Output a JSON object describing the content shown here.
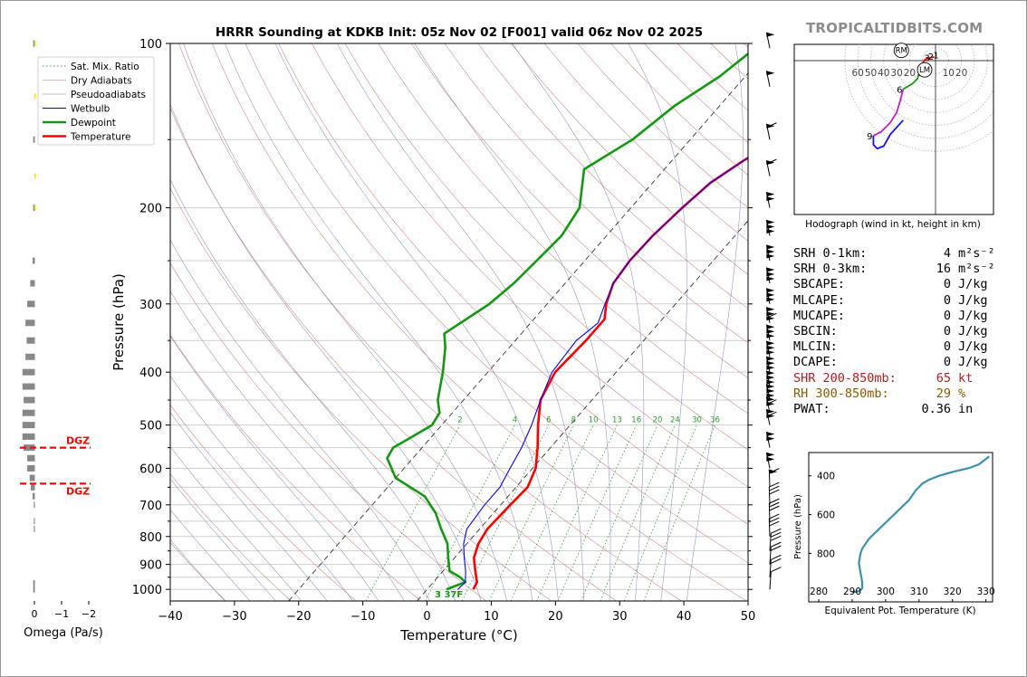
{
  "brand": "TROPICALTIDBITS.COM",
  "colors": {
    "temperature": "#ff0000",
    "dewpoint": "#119911",
    "wetbulb": "#0000ff",
    "dry_adiabat": "#d08080",
    "pseudo_adiabat": "#9090c8",
    "mixing_ratio": "#2e9e2e",
    "theta_e": "#3a92b0",
    "omega": "#888888",
    "dgz": "#ff0000",
    "srh_color": "#b02020",
    "rh_color": "#8b5a00"
  },
  "chart_data": [
    {
      "id": "skewt",
      "type": "line",
      "title": "HRRR Sounding at KDKB Init: 05z Nov 02 [F001] valid 06z Nov 02 2025",
      "xlabel": "Temperature (°C)",
      "ylabel": "Pressure (hPa)",
      "xlim": [
        -40,
        50
      ],
      "ylim": [
        1050,
        100
      ],
      "y_scale": "log",
      "x_ticks": [
        "−40",
        "−30",
        "−20",
        "−10",
        "0",
        "10",
        "20",
        "30",
        "40",
        "50"
      ],
      "y_ticks": [
        "100",
        "200",
        "300",
        "400",
        "500",
        "600",
        "700",
        "800",
        "900",
        "1000"
      ],
      "mixing_ratio_labels": [
        "2",
        "4",
        "6",
        "8",
        "10",
        "13",
        "16",
        "20",
        "24",
        "30",
        "36"
      ],
      "surface_label": "3 37F",
      "legend": [
        "Sat. Mix. Ratio",
        "Dry Adiabats",
        "Pseudoadiabats",
        "Wetbulb",
        "Dewpoint",
        "Temperature"
      ],
      "legend_position": "top-left",
      "series": [
        {
          "name": "Temperature",
          "points": [
            [
              7.2,
              1000
            ],
            [
              6.8,
              970
            ],
            [
              5,
              925
            ],
            [
              3,
              875
            ],
            [
              1.8,
              825
            ],
            [
              1.2,
              775
            ],
            [
              1.5,
              700
            ],
            [
              1.8,
              650
            ],
            [
              0.5,
              600
            ],
            [
              -2,
              550
            ],
            [
              -5,
              500
            ],
            [
              -8,
              450
            ],
            [
              -9.5,
              400
            ],
            [
              -9,
              350
            ],
            [
              -9,
              320
            ],
            [
              -10.8,
              300
            ],
            [
              -12.5,
              275
            ],
            [
              -13,
              250
            ],
            [
              -12.8,
              225
            ],
            [
              -12,
              200
            ],
            [
              -11,
              180
            ],
            [
              -9,
              165
            ],
            [
              -6.5,
              150
            ],
            [
              -3.5,
              130
            ],
            [
              -1,
              115
            ],
            [
              1,
              100
            ]
          ]
        },
        {
          "name": "Dewpoint",
          "points": [
            [
              3,
              1000
            ],
            [
              5,
              970
            ],
            [
              3.5,
              950
            ],
            [
              1,
              925
            ],
            [
              -1,
              875
            ],
            [
              -3,
              825
            ],
            [
              -6,
              775
            ],
            [
              -9,
              725
            ],
            [
              -13,
              675
            ],
            [
              -20,
              625
            ],
            [
              -24,
              575
            ],
            [
              -24.5,
              550
            ],
            [
              -23,
              525
            ],
            [
              -21.5,
              500
            ],
            [
              -22,
              475
            ],
            [
              -24,
              450
            ],
            [
              -27,
              400
            ],
            [
              -30,
              360
            ],
            [
              -32,
              340
            ],
            [
              -29,
              300
            ],
            [
              -28,
              275
            ],
            [
              -27.5,
              250
            ],
            [
              -27,
              225
            ],
            [
              -28,
              200
            ],
            [
              -32.5,
              170
            ],
            [
              -29,
              150
            ],
            [
              -27,
              130
            ],
            [
              -24,
              115
            ],
            [
              -22,
              100
            ]
          ]
        },
        {
          "name": "Wetbulb",
          "points": [
            [
              4.8,
              1000
            ],
            [
              5,
              970
            ],
            [
              3.5,
              925
            ],
            [
              1.5,
              875
            ],
            [
              -0.5,
              825
            ],
            [
              -2,
              775
            ],
            [
              -2.5,
              700
            ],
            [
              -2.5,
              650
            ],
            [
              -3.5,
              600
            ],
            [
              -4.5,
              550
            ],
            [
              -6,
              500
            ],
            [
              -8,
              450
            ],
            [
              -10,
              400
            ],
            [
              -10.5,
              350
            ],
            [
              -9.5,
              325
            ],
            [
              -11,
              300
            ],
            [
              -12.5,
              275
            ],
            [
              -13,
              250
            ],
            [
              -12.8,
              225
            ],
            [
              -12,
              200
            ],
            [
              -11,
              180
            ],
            [
              -9,
              165
            ],
            [
              -6.5,
              150
            ],
            [
              -3.5,
              130
            ],
            [
              -1,
              115
            ],
            [
              0.8,
              100
            ]
          ]
        }
      ]
    },
    {
      "id": "hodograph",
      "type": "line",
      "title": "",
      "xlabel": "Hodograph (wind in kt, height in km)",
      "xlim": [
        -70,
        25
      ],
      "ylim": [
        -70,
        10
      ],
      "ring_labels": [
        "60",
        "50",
        "40",
        "30",
        "20",
        "10",
        "10",
        "20"
      ],
      "height_labels": [
        "1",
        "2",
        "3",
        "6",
        "9"
      ],
      "markers": [
        "RM",
        "LM"
      ],
      "segments": [
        {
          "name": "0-3 km",
          "points": [
            [
              -1,
              3
            ],
            [
              -5,
              2
            ],
            [
              -8,
              1
            ],
            [
              -10,
              -2
            ]
          ]
        },
        {
          "name": "3-6 km",
          "points": [
            [
              -10,
              -2
            ],
            [
              -12,
              -8
            ],
            [
              -14,
              -14
            ],
            [
              -18,
              -18
            ],
            [
              -25,
              -22
            ]
          ]
        },
        {
          "name": "6-9 km",
          "points": [
            [
              -25,
              -22
            ],
            [
              -27,
              -30
            ],
            [
              -30,
              -40
            ],
            [
              -35,
              -48
            ],
            [
              -42,
              -55
            ],
            [
              -48,
              -58
            ]
          ]
        },
        {
          "name": "9+ km",
          "points": [
            [
              -48,
              -58
            ],
            [
              -48,
              -65
            ],
            [
              -45,
              -68
            ],
            [
              -40,
              -66
            ],
            [
              -35,
              -57
            ],
            [
              -25,
              -46
            ]
          ]
        }
      ],
      "rm_point": [
        -18,
        3
      ],
      "lm_point": [
        0,
        -12
      ]
    },
    {
      "id": "theta_e",
      "type": "line",
      "title": "",
      "xlabel": "Equivalent Pot. Temperature (K)",
      "ylabel": "Pressure (hPa)",
      "xlim": [
        277,
        332
      ],
      "ylim": [
        1050,
        280
      ],
      "x_ticks": [
        "280",
        "290",
        "300",
        "310",
        "320",
        "330"
      ],
      "y_ticks": [
        "400",
        "600",
        "800"
      ],
      "points": [
        [
          290,
          1000
        ],
        [
          292,
          995
        ],
        [
          293,
          980
        ],
        [
          293,
          950
        ],
        [
          292.5,
          900
        ],
        [
          292,
          850
        ],
        [
          292.5,
          800
        ],
        [
          293,
          775
        ],
        [
          295,
          725
        ],
        [
          298,
          675
        ],
        [
          301,
          625
        ],
        [
          304,
          575
        ],
        [
          307,
          525
        ],
        [
          309,
          475
        ],
        [
          311,
          440
        ],
        [
          313,
          420
        ],
        [
          316,
          400
        ],
        [
          320,
          380
        ],
        [
          325,
          360
        ],
        [
          328,
          340
        ],
        [
          331,
          300
        ]
      ]
    },
    {
      "id": "omega",
      "type": "bar",
      "title": "",
      "xlabel": "Omega (Pa/s)",
      "x_ticks": [
        "0",
        "−1",
        "−2"
      ],
      "dgz_label": "DGZ",
      "dgz_levels": [
        550,
        640
      ],
      "levels": [
        100,
        125,
        150,
        175,
        200,
        225,
        250,
        275,
        300,
        325,
        350,
        375,
        400,
        425,
        450,
        475,
        500,
        525,
        550,
        575,
        600,
        625,
        650,
        675,
        700,
        725,
        750,
        775,
        800,
        825,
        850,
        875,
        900,
        925,
        950,
        975,
        1000
      ],
      "values": [
        0.02,
        0.0,
        0.02,
        0.0,
        0.02,
        0.0,
        0.03,
        0.07,
        0.12,
        0.15,
        0.13,
        0.15,
        0.2,
        0.2,
        0.18,
        0.2,
        0.2,
        0.2,
        0.18,
        0.12,
        0.12,
        0.08,
        0.06,
        0.03,
        0.01,
        0.0,
        0.01,
        0.01,
        0.0,
        0.0,
        0.0,
        0.0,
        0.0,
        0.0,
        0.0,
        0.02,
        0.02
      ]
    }
  ],
  "stats": [
    {
      "label": "SRH 0-1km:",
      "value": "4",
      "unit": "m²s⁻²",
      "color": "#000000"
    },
    {
      "label": "SRH 0-3km:",
      "value": "16",
      "unit": "m²s⁻²",
      "color": "#000000"
    },
    {
      "label": "SBCAPE:",
      "value": "0",
      "unit": "J/kg",
      "color": "#000000"
    },
    {
      "label": "MLCAPE:",
      "value": "0",
      "unit": "J/kg",
      "color": "#000000"
    },
    {
      "label": "MUCAPE:",
      "value": "0",
      "unit": "J/kg",
      "color": "#000000"
    },
    {
      "label": "SBCIN:",
      "value": "0",
      "unit": "J/kg",
      "color": "#000000"
    },
    {
      "label": "MLCIN:",
      "value": "0",
      "unit": "J/kg",
      "color": "#000000"
    },
    {
      "label": "DCAPE:",
      "value": "0",
      "unit": "J/kg",
      "color": "#000000"
    },
    {
      "label": "SHR 200-850mb:",
      "value": "65",
      "unit": "kt",
      "color": "#b02020"
    },
    {
      "label": "RH 300-850mb:",
      "value": "29",
      "unit": "%",
      "color": "#8b5a00"
    },
    {
      "label": "PWAT:",
      "value": "0.36",
      "unit": "in",
      "color": "#000000"
    }
  ]
}
